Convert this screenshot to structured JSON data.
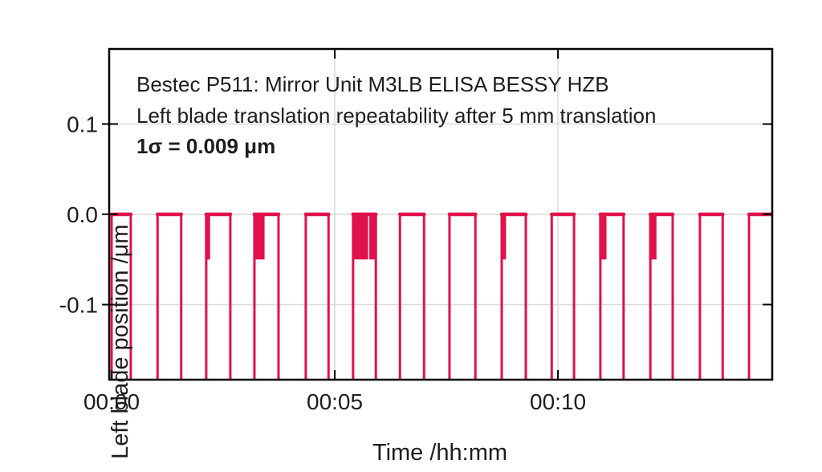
{
  "colors": {
    "series": "#E1114B",
    "grid": "#D9D9D9",
    "axis": "#000000",
    "text": "#1D1D1F"
  },
  "chart_data": {
    "type": "line",
    "subtype": "square-wave repeatability trace",
    "annotation": {
      "line1": "Bestec P511: Mirror Unit M3LB ELISA BESSY HZB",
      "line2": "Left blade translation repeatability after 5 mm translation",
      "line3": "1σ = 0.009 μm"
    },
    "xlabel": "Time /hh:mm",
    "ylabel": "Left blade position /μm",
    "xlim_minutes": [
      -0.054,
      14.8
    ],
    "ylim": [
      -0.1832,
      0.1832
    ],
    "x_ticks": [
      {
        "value": 0,
        "label": "00:00"
      },
      {
        "value": 5,
        "label": "00:05"
      },
      {
        "value": 10,
        "label": "00:10"
      }
    ],
    "y_ticks": [
      {
        "value": 0.1,
        "label": "0.1"
      },
      {
        "value": 0.0,
        "label": "0.0"
      },
      {
        "value": -0.1,
        "label": "-0.1"
      }
    ],
    "grid": true,
    "legend": "none",
    "high_level_um": 0.0,
    "dip_level_um": -0.05,
    "low_level": "off-scale low between pulses (blade retracted 5 mm, clipped at plot bottom)",
    "pulses": [
      {
        "start": 0.0,
        "end": 0.43,
        "dips": []
      },
      {
        "start": 1.03,
        "end": 1.56,
        "dips": []
      },
      {
        "start": 2.12,
        "end": 2.66,
        "dips": [
          [
            2.12,
            2.18
          ]
        ]
      },
      {
        "start": 3.2,
        "end": 3.74,
        "dips": [
          [
            3.2,
            3.4
          ]
        ]
      },
      {
        "start": 4.35,
        "end": 4.86,
        "dips": []
      },
      {
        "start": 5.41,
        "end": 5.92,
        "dips": [
          [
            5.42,
            5.72
          ],
          [
            5.8,
            5.89
          ]
        ]
      },
      {
        "start": 6.46,
        "end": 7.0,
        "dips": []
      },
      {
        "start": 7.57,
        "end": 8.15,
        "dips": []
      },
      {
        "start": 8.74,
        "end": 9.28,
        "dips": [
          [
            8.74,
            8.81
          ]
        ]
      },
      {
        "start": 9.86,
        "end": 10.36,
        "dips": []
      },
      {
        "start": 10.95,
        "end": 11.47,
        "dips": [
          [
            10.95,
            11.06
          ]
        ]
      },
      {
        "start": 12.07,
        "end": 12.57,
        "dips": [
          [
            12.07,
            12.18
          ]
        ]
      },
      {
        "start": 13.18,
        "end": 13.69,
        "dips": []
      },
      {
        "start": 14.28,
        "end": 14.95,
        "dips": []
      }
    ]
  }
}
